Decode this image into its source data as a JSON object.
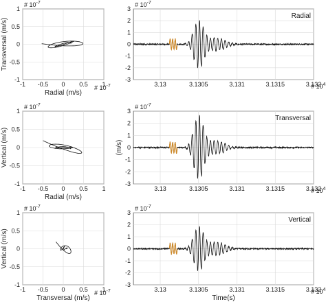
{
  "colors": {
    "trace": "#111111",
    "highlight": "#d08a28",
    "grid": "#d9d9d9",
    "frame": "#444444"
  },
  "chart_data": [
    {
      "type": "line",
      "subtype": "particle-motion",
      "xlabel": "Radial (m/s)",
      "ylabel": "Transversal (m/s)",
      "x_exponent_label": "# 10^-7",
      "y_exponent_label": "# 10^-7",
      "xlim": [
        -1,
        1
      ],
      "ylim": [
        -1,
        1
      ],
      "xticks": [
        "-1",
        "-0.5",
        "0",
        "0.5",
        "1"
      ],
      "yticks": [
        "-1",
        "-0.5",
        "0",
        "0.5",
        "1"
      ],
      "grid": true
    },
    {
      "type": "line",
      "subtype": "waveform",
      "panel_label": "Radial",
      "x_exponent_label": "# 10^4",
      "y_exponent_label": "# 10^-7",
      "xlim": [
        31296.5,
        31320
      ],
      "ylim": [
        -3,
        3
      ],
      "xticks": [
        "3.13",
        "3.1305",
        "3.131",
        "3.1315",
        "3.132"
      ],
      "yticks": [
        "-3",
        "-2",
        "-1",
        "0",
        "1",
        "2",
        "3"
      ],
      "grid": true,
      "burst_center": 31305,
      "peak_amplitude": 2.0,
      "highlight_window": [
        31301.2,
        31302.2
      ]
    },
    {
      "type": "line",
      "subtype": "particle-motion",
      "xlabel": "Radial (m/s)",
      "ylabel": "Vertical (m/s)",
      "y_exponent_label": "# 10^-7",
      "xlim": [
        -1,
        1
      ],
      "ylim": [
        -1,
        1
      ],
      "xticks": [
        "-1",
        "-0.5",
        "0",
        "0.5",
        "1"
      ],
      "yticks": [
        "-1",
        "-0.5",
        "0",
        "0.5",
        "1"
      ],
      "grid": true
    },
    {
      "type": "line",
      "subtype": "waveform",
      "panel_label": "Transversal",
      "ylabel": "(m/s)",
      "x_exponent_label": "# 10^4",
      "y_exponent_label": "# 10^-7",
      "xlim": [
        31296.5,
        31320
      ],
      "ylim": [
        -3,
        3
      ],
      "xticks": [
        "3.13",
        "3.1305",
        "3.131",
        "3.1315",
        "3.132"
      ],
      "yticks": [
        "-3",
        "-2",
        "-1",
        "0",
        "1",
        "2",
        "3"
      ],
      "grid": true,
      "burst_center": 31305,
      "peak_amplitude": 2.6,
      "highlight_window": [
        31301.2,
        31302.2
      ]
    },
    {
      "type": "line",
      "subtype": "particle-motion",
      "xlabel": "Transversal (m/s)",
      "ylabel": "Vertical (m/s)",
      "x_exponent_label": "# 10^-7",
      "y_exponent_label": "# 10^-7",
      "xlim": [
        -1,
        1
      ],
      "ylim": [
        -1,
        1
      ],
      "xticks": [
        "-1",
        "-0.5",
        "0",
        "0.5",
        "1"
      ],
      "yticks": [
        "-1",
        "-0.5",
        "0",
        "0.5",
        "1"
      ],
      "grid": true
    },
    {
      "type": "line",
      "subtype": "waveform",
      "panel_label": "Vertical",
      "xlabel": "Time(s)",
      "x_exponent_label": "# 10^4",
      "y_exponent_label": "# 10^-7",
      "xlim": [
        31296.5,
        31320
      ],
      "ylim": [
        -3,
        3
      ],
      "xticks": [
        "3.13",
        "3.1305",
        "3.131",
        "3.1315",
        "3.132"
      ],
      "yticks": [
        "-3",
        "-2",
        "-1",
        "0",
        "1",
        "2",
        "3"
      ],
      "grid": true,
      "burst_center": 31305,
      "peak_amplitude": 1.8,
      "highlight_window": [
        31301.2,
        31302.2
      ]
    }
  ]
}
